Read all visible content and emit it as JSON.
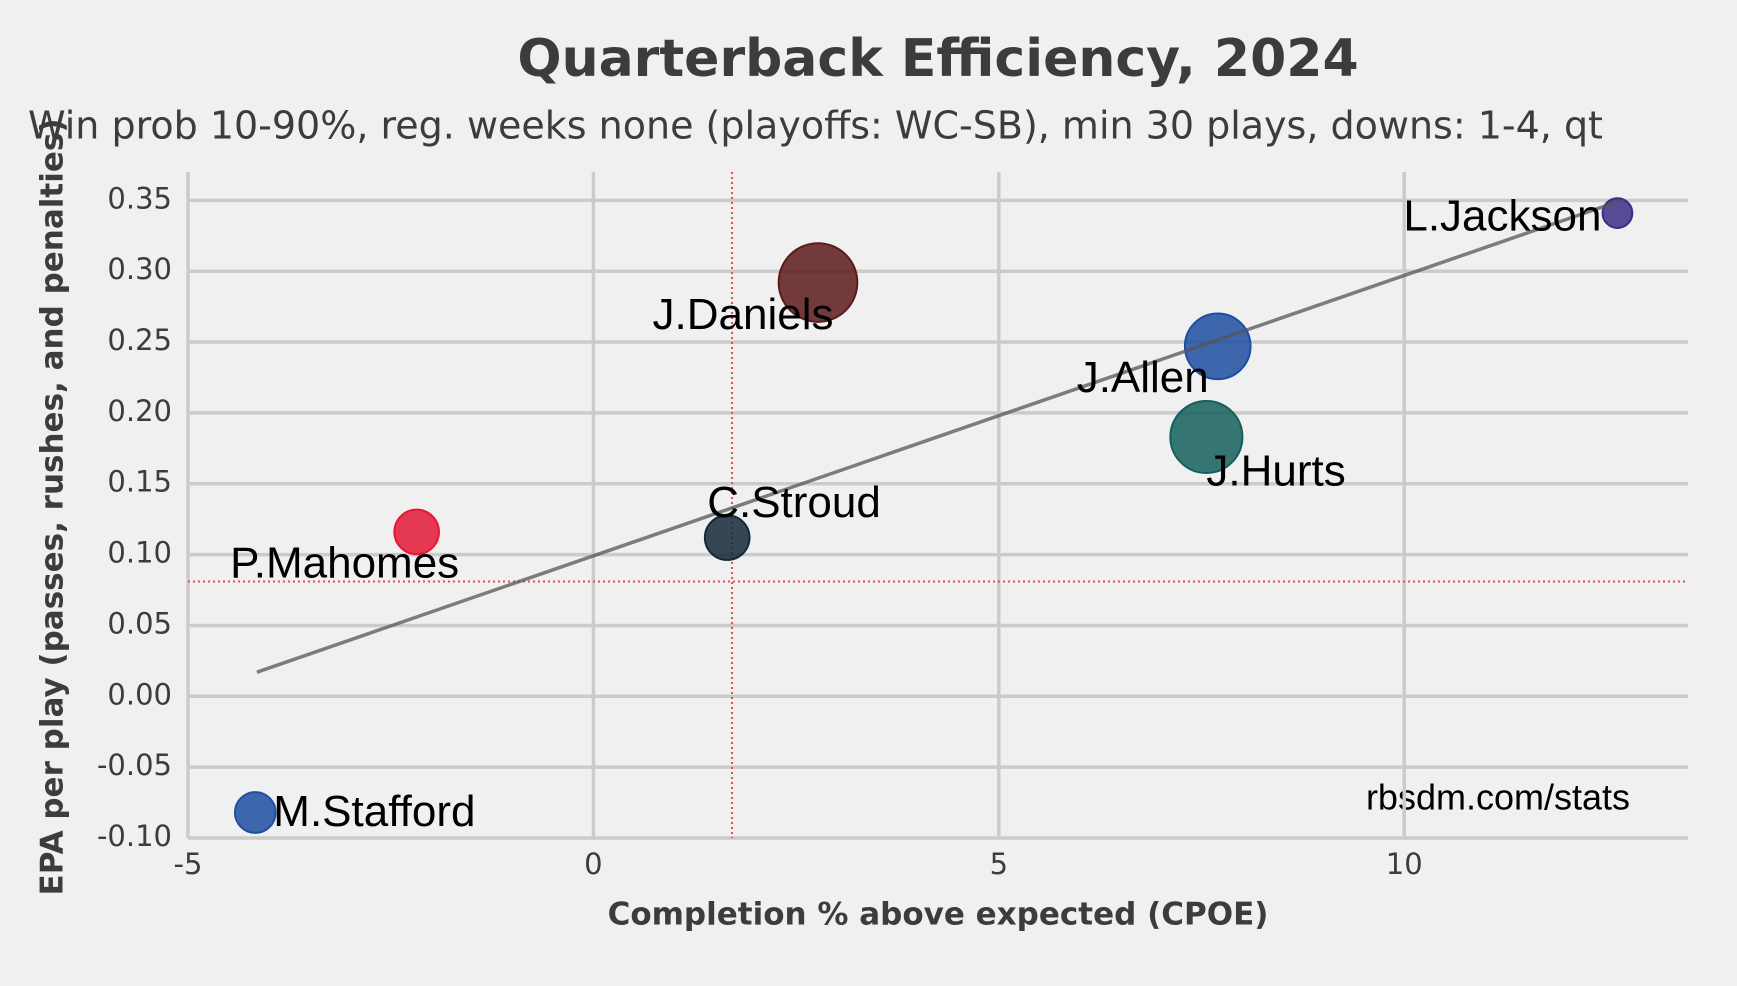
{
  "chart_data": {
    "type": "scatter",
    "title": "Quarterback Efficiency, 2024",
    "subtitle": "Win prob 10-90%, reg. weeks none (playoffs: WC-SB), min 30 plays, downs: 1-4, qt",
    "xlabel": "Completion % above expected (CPOE)",
    "ylabel": "EPA per play (passes, rushes, and penalties)",
    "annotation": "rbsdm.com/stats",
    "labels": [
      "L.Jackson",
      "J.Daniels",
      "J.Allen",
      "J.Hurts",
      "C.Stroud",
      "P.Mahomes",
      "M.Stafford"
    ],
    "x": [
      12.63,
      2.77,
      7.7,
      7.56,
      1.65,
      -2.18,
      -4.17
    ],
    "y": [
      0.341,
      0.292,
      0.247,
      0.183,
      0.112,
      0.116,
      -0.082
    ],
    "sizes": [
      40,
      280,
      195,
      235,
      90,
      90,
      75
    ],
    "colors": [
      "#3b2e85",
      "#5c1a1b",
      "#1f4ea0",
      "#14605d",
      "#15283a",
      "#e31837",
      "#1f4ea0"
    ],
    "trend": {
      "x": [
        -4.15,
        12.63
      ],
      "y": [
        0.017,
        0.349
      ]
    },
    "ref_x": 1.71,
    "ref_y": 0.081,
    "xlim": [
      -5,
      13.5
    ],
    "ylim": [
      -0.1,
      0.37
    ],
    "xticks": [
      -5,
      0,
      5,
      10
    ],
    "yticks": [
      {
        "value": -0.1,
        "label": "-0.10"
      },
      -0.05,
      {
        "value": 0,
        "label": "0.00"
      },
      0.05,
      {
        "value": 0.1,
        "label": "0.10"
      },
      0.15,
      {
        "value": 0.2,
        "label": "0.20"
      },
      0.25,
      {
        "value": 0.3,
        "label": "0.30"
      },
      0.35
    ],
    "grid": true
  }
}
